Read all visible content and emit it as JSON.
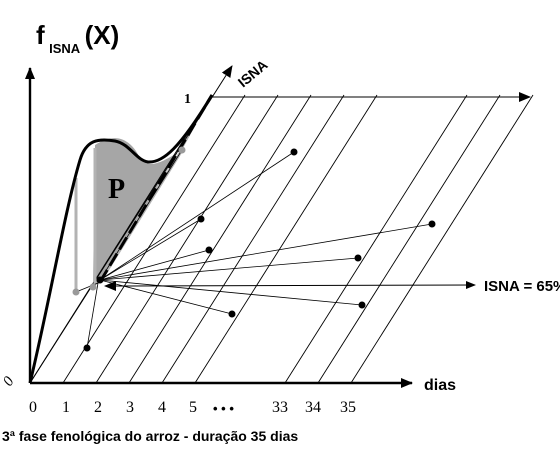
{
  "axes": {
    "y_label_main": "f",
    "y_label_sub": "ISNA",
    "y_label_arg": "(X)",
    "x_label": "dias",
    "diagonal_label": "ISNA",
    "diagonal_one": "1",
    "origin": "0"
  },
  "region_label": "P",
  "annotation": "ISNA = 65%",
  "x_ticks": [
    "0",
    "1",
    "2",
    "3",
    "4",
    "5",
    "33",
    "34",
    "35"
  ],
  "ellipsis": "• • •",
  "caption": "3ª fase fenológica do arroz - duração 35 dias",
  "colors": {
    "ink": "#000000",
    "shade": "#a6a6a6",
    "projection": "#b3b3b3",
    "background": "#ffffff"
  }
}
